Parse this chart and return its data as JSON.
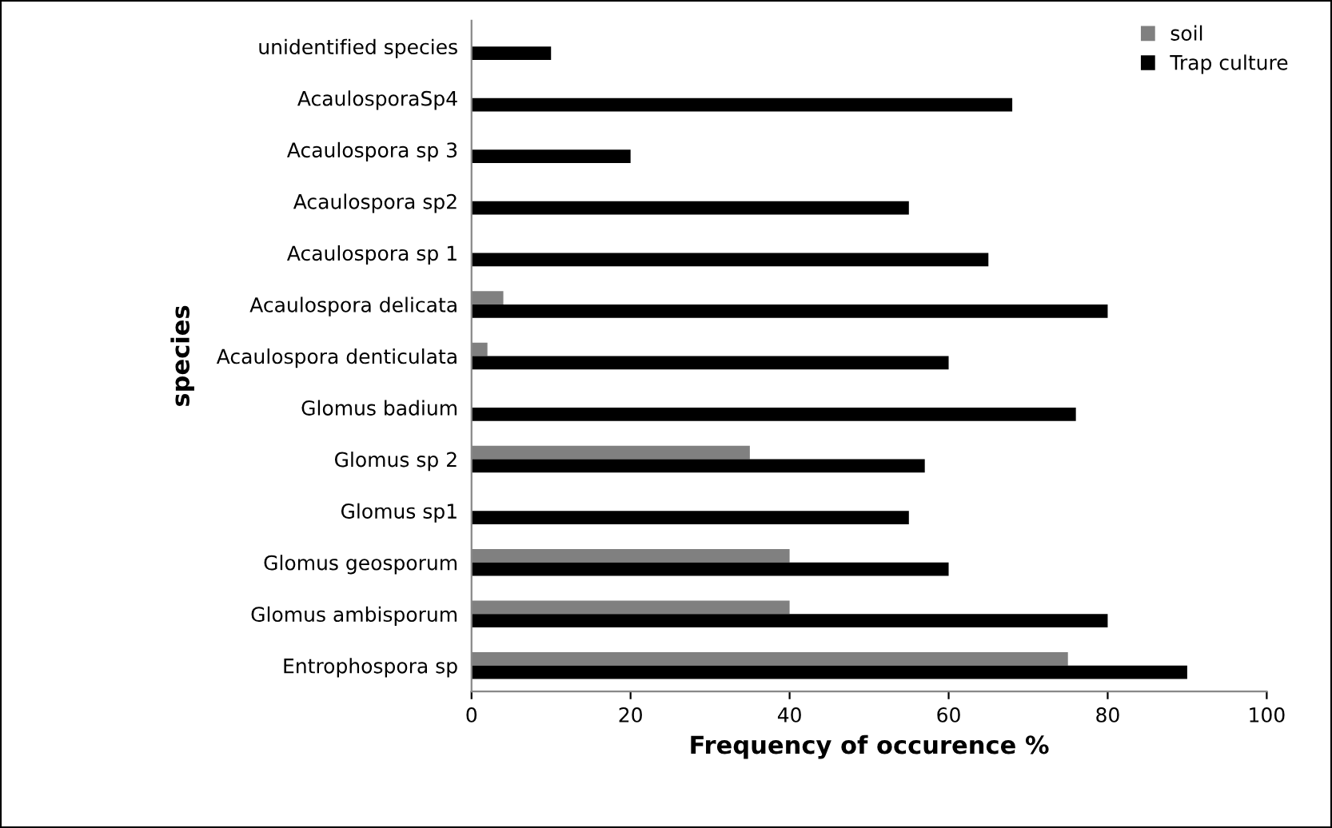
{
  "chart_data": {
    "type": "bar",
    "orientation": "horizontal",
    "xlabel": "Frequency of occurence %",
    "ylabel": "species",
    "categories": [
      "unidentified species",
      "AcaulosporaSp4",
      "Acaulospora sp 3",
      "Acaulospora sp2",
      "Acaulospora sp 1",
      "Acaulospora delicata",
      "Acaulospora denticulata",
      "Glomus badium",
      "Glomus sp 2",
      "Glomus sp1",
      "Glomus geosporum",
      "Glomus ambisporum",
      "Entrophospora sp"
    ],
    "series": [
      {
        "name": "soil",
        "color": "#808080",
        "values": [
          0,
          0,
          0,
          0,
          0,
          4,
          2,
          0,
          35,
          0,
          40,
          40,
          75
        ]
      },
      {
        "name": "Trap culture",
        "color": "#000000",
        "values": [
          10,
          68,
          20,
          55,
          65,
          80,
          60,
          76,
          57,
          55,
          60,
          80,
          90
        ]
      }
    ],
    "xlim": [
      0,
      100
    ],
    "xticks": [
      0,
      20,
      40,
      60,
      80,
      100
    ],
    "grid": false,
    "legend": "top right"
  }
}
